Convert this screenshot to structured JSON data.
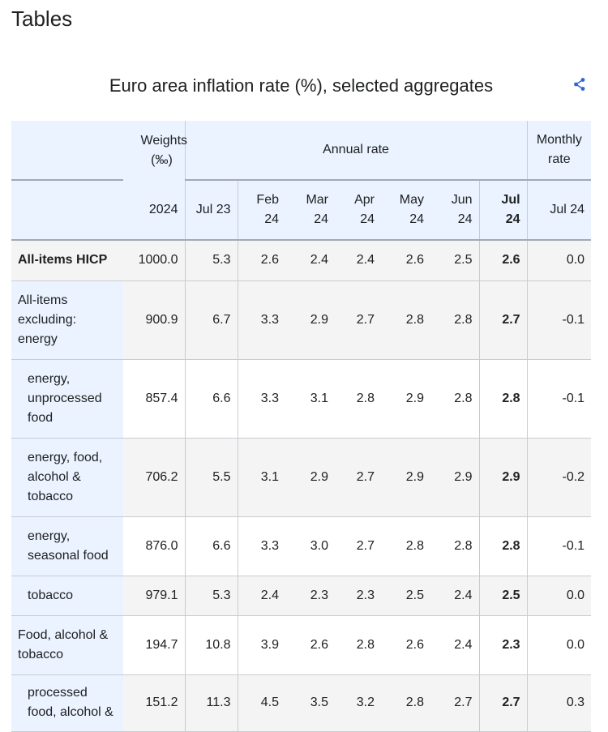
{
  "page": {
    "heading": "Tables"
  },
  "table": {
    "caption": "Euro area inflation rate (%), selected aggregates",
    "header": {
      "weights": "Weights (‰)",
      "annual": "Annual rate",
      "monthly": "Monthly rate",
      "weights_year": "2024",
      "annual_cols": [
        "Jul 23",
        "Feb 24",
        "Mar 24",
        "Apr 24",
        "May 24",
        "Jun 24",
        "Jul 24"
      ],
      "monthly_col": "Jul 24"
    },
    "rows": [
      {
        "label": "All-items HICP",
        "weight": "1000.0",
        "values": [
          "5.3",
          "2.6",
          "2.4",
          "2.4",
          "2.6",
          "2.5",
          "2.6"
        ],
        "monthly": "0.0"
      },
      {
        "label": "All-items excluding: energy",
        "weight": "900.9",
        "values": [
          "6.7",
          "3.3",
          "2.9",
          "2.7",
          "2.8",
          "2.8",
          "2.7"
        ],
        "monthly": "-0.1"
      },
      {
        "label": "energy, unprocessed food",
        "weight": "857.4",
        "values": [
          "6.6",
          "3.3",
          "3.1",
          "2.8",
          "2.9",
          "2.8",
          "2.8"
        ],
        "monthly": "-0.1"
      },
      {
        "label": "energy, food, alcohol & tobacco",
        "weight": "706.2",
        "values": [
          "5.5",
          "3.1",
          "2.9",
          "2.7",
          "2.9",
          "2.9",
          "2.9"
        ],
        "monthly": "-0.2"
      },
      {
        "label": "energy, seasonal food",
        "weight": "876.0",
        "values": [
          "6.6",
          "3.3",
          "3.0",
          "2.7",
          "2.8",
          "2.8",
          "2.8"
        ],
        "monthly": "-0.1"
      },
      {
        "label": "tobacco",
        "weight": "979.1",
        "values": [
          "5.3",
          "2.4",
          "2.3",
          "2.3",
          "2.5",
          "2.4",
          "2.5"
        ],
        "monthly": "0.0"
      },
      {
        "label": "Food, alcohol & tobacco",
        "weight": "194.7",
        "values": [
          "10.8",
          "3.9",
          "2.6",
          "2.8",
          "2.6",
          "2.4",
          "2.3"
        ],
        "monthly": "0.0"
      },
      {
        "label": "processed food, alcohol &",
        "weight": "151.2",
        "values": [
          "11.3",
          "4.5",
          "3.5",
          "3.2",
          "2.8",
          "2.7",
          "2.7"
        ],
        "monthly": "0.3"
      }
    ]
  }
}
